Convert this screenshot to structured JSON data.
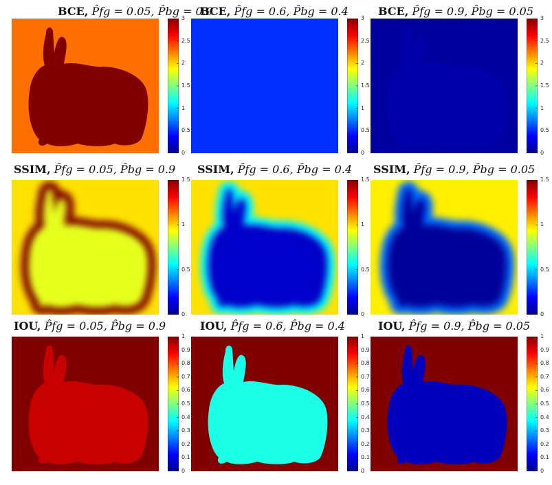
{
  "colormap_stops": [
    "#00008f",
    "#0000ff",
    "#00ffff",
    "#ffff00",
    "#ff0000",
    "#800000"
  ],
  "chart_data": [
    {
      "type": "heatmap",
      "metric": "BCE",
      "prediction": "\\hat{P}_{fg} = 0.05, \\hat{P}_{bg} = 0.9",
      "title_metric": "BCE,",
      "title_expr": "P̂fg = 0.05, P̂bg = 0.9",
      "fg_value": 3.0,
      "bg_value": 2.3,
      "edge_value": null,
      "vmin": 0,
      "vmax": 3,
      "ticks": [
        "0",
        "0.5",
        "1",
        "1.5",
        "2",
        "2.5",
        "3"
      ]
    },
    {
      "type": "heatmap",
      "metric": "BCE",
      "prediction": "\\hat{P}_{fg} = 0.6, \\hat{P}_{bg} = 0.4",
      "title_metric": "BCE,",
      "title_expr": "P̂fg = 0.6, P̂bg = 0.4",
      "fg_value": 0.51,
      "bg_value": 0.51,
      "edge_value": null,
      "vmin": 0,
      "vmax": 3,
      "ticks": [
        "0",
        "0.5",
        "1",
        "1.5",
        "2",
        "2.5",
        "3"
      ]
    },
    {
      "type": "heatmap",
      "metric": "BCE",
      "prediction": "\\hat{P}_{fg} = 0.9, \\hat{P}_{bg} = 0.05",
      "title_metric": "BCE,",
      "title_expr": "P̂fg = 0.9, P̂bg = 0.05",
      "fg_value": 0.1,
      "bg_value": 0.05,
      "edge_value": null,
      "vmin": 0,
      "vmax": 3,
      "ticks": [
        "0",
        "0.5",
        "1",
        "1.5",
        "2",
        "2.5",
        "3"
      ]
    },
    {
      "type": "heatmap",
      "metric": "SSIM",
      "prediction": "\\hat{P}_{fg} = 0.05, \\hat{P}_{bg} = 0.9",
      "title_metric": "SSIM,",
      "title_expr": "P̂fg = 0.05, P̂bg = 0.9",
      "fg_value": 0.9,
      "bg_value": 0.98,
      "edge_value": 1.5,
      "vmin": 0,
      "vmax": 1.5,
      "ticks": [
        "0",
        "0.5",
        "1",
        "1.5"
      ]
    },
    {
      "type": "heatmap",
      "metric": "SSIM",
      "prediction": "\\hat{P}_{fg} = 0.6, \\hat{P}_{bg} = 0.4",
      "title_metric": "SSIM,",
      "title_expr": "P̂fg = 0.6, P̂bg = 0.4",
      "fg_value": 0.1,
      "bg_value": 0.98,
      "edge_value": 0.55,
      "vmin": 0,
      "vmax": 1.5,
      "ticks": [
        "0",
        "0.5",
        "1",
        "1.5"
      ]
    },
    {
      "type": "heatmap",
      "metric": "SSIM",
      "prediction": "\\hat{P}_{fg} = 0.9, \\hat{P}_{bg} = 0.05",
      "title_metric": "SSIM,",
      "title_expr": "P̂fg = 0.9, P̂bg = 0.05",
      "fg_value": 0.02,
      "bg_value": 0.96,
      "edge_value": 0.35,
      "vmin": 0,
      "vmax": 1.5,
      "ticks": [
        "0",
        "0.5",
        "1",
        "1.5"
      ]
    },
    {
      "type": "heatmap",
      "metric": "IOU",
      "prediction": "\\hat{P}_{fg} = 0.05, \\hat{P}_{bg} = 0.9",
      "title_metric": "IOU,",
      "title_expr": "P̂fg = 0.05, P̂bg = 0.9",
      "fg_value": 0.93,
      "bg_value": 1.0,
      "edge_value": null,
      "vmin": 0,
      "vmax": 1,
      "ticks": [
        "0",
        "0.1",
        "0.2",
        "0.3",
        "0.4",
        "0.5",
        "0.6",
        "0.7",
        "0.8",
        "0.9",
        "1"
      ]
    },
    {
      "type": "heatmap",
      "metric": "IOU",
      "prediction": "\\hat{P}_{fg} = 0.6, \\hat{P}_{bg} = 0.4",
      "title_metric": "IOU,",
      "title_expr": "P̂fg = 0.6, P̂bg = 0.4",
      "fg_value": 0.4,
      "bg_value": 1.0,
      "edge_value": null,
      "vmin": 0,
      "vmax": 1,
      "ticks": [
        "0",
        "0.1",
        "0.2",
        "0.3",
        "0.4",
        "0.5",
        "0.6",
        "0.7",
        "0.8",
        "0.9",
        "1"
      ]
    },
    {
      "type": "heatmap",
      "metric": "IOU",
      "prediction": "\\hat{P}_{fg} = 0.9, \\hat{P}_{bg} = 0.05",
      "title_metric": "IOU,",
      "title_expr": "P̂fg = 0.9, P̂bg = 0.05",
      "fg_value": 0.05,
      "bg_value": 1.0,
      "edge_value": null,
      "vmin": 0,
      "vmax": 1,
      "ticks": [
        "0",
        "0.1",
        "0.2",
        "0.3",
        "0.4",
        "0.5",
        "0.6",
        "0.7",
        "0.8",
        "0.9",
        "1"
      ]
    }
  ]
}
